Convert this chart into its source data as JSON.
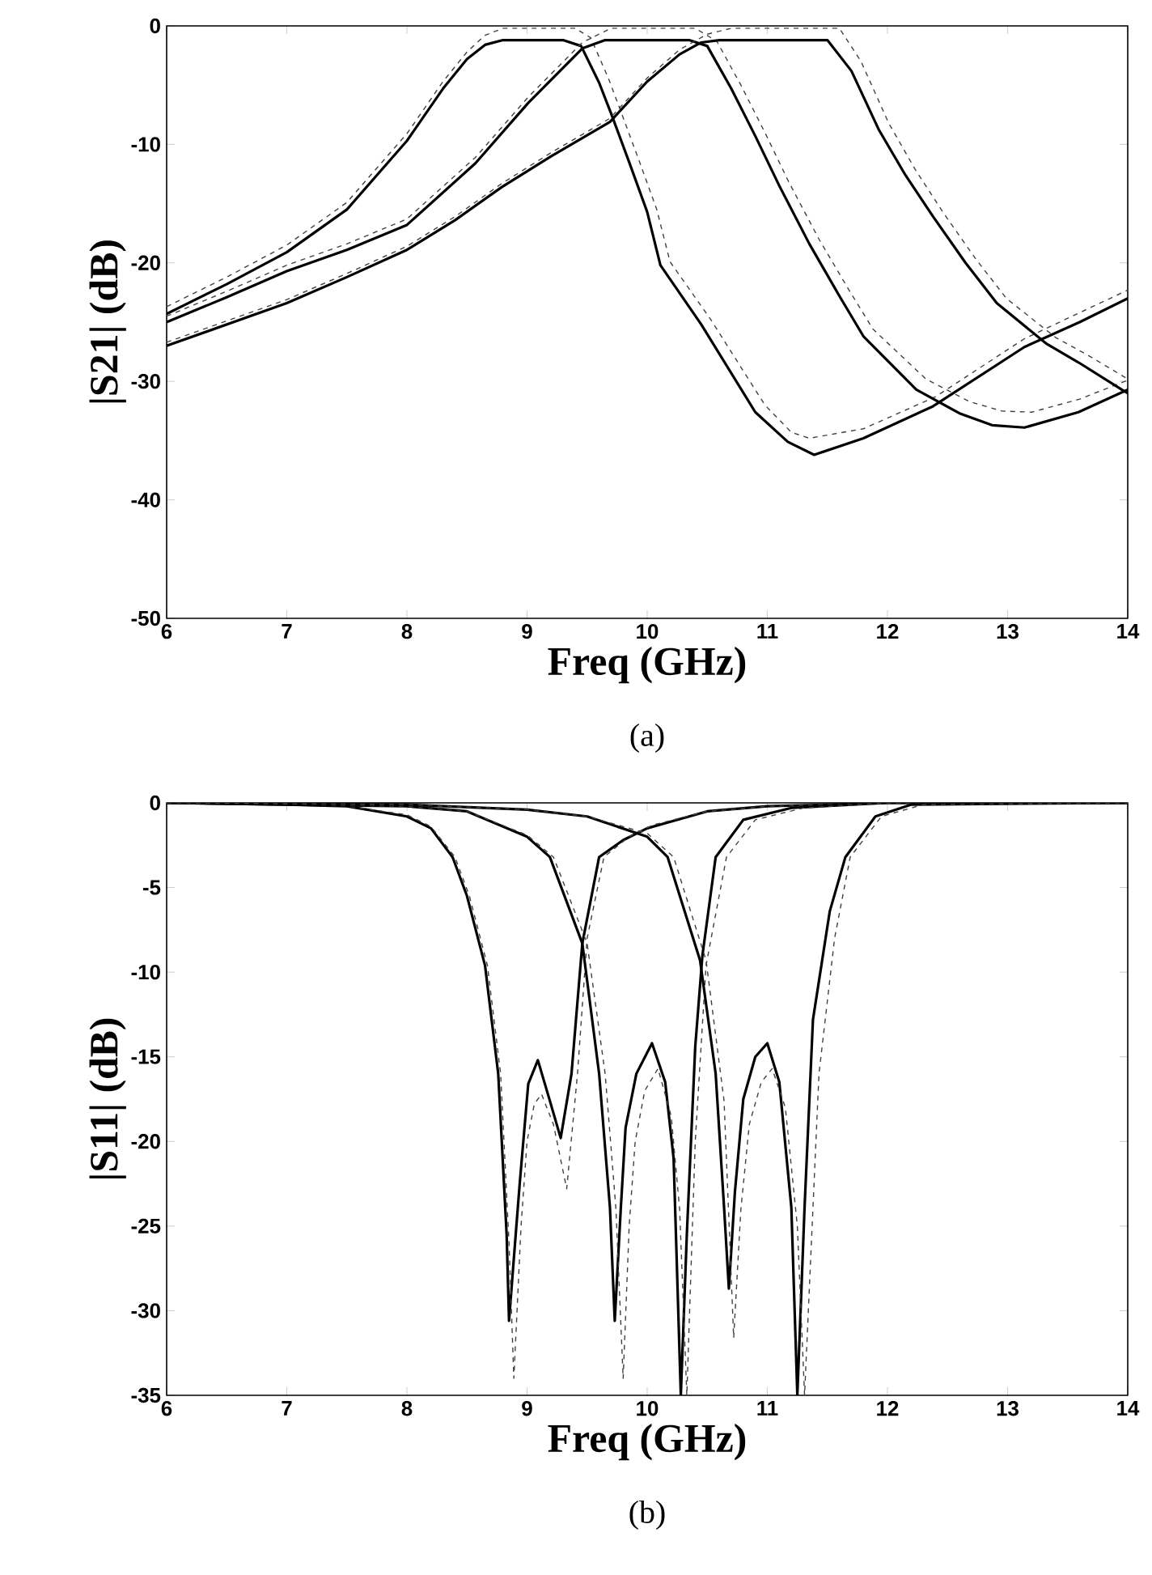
{
  "chart_data": [
    {
      "type": "line",
      "xlabel": "Freq (GHz)",
      "ylabel": "|S21| (dB)",
      "annotations": [
        "(a)"
      ],
      "xlim": [
        6,
        14
      ],
      "ylim": [
        -50,
        0
      ],
      "xticks": [
        6,
        7,
        8,
        9,
        10,
        11,
        12,
        13,
        14
      ],
      "yticks": [
        -50,
        -40,
        -30,
        -20,
        -10,
        0
      ],
      "series": [
        {
          "color": "#000000",
          "line_style": "solid",
          "x": [
            6,
            6.5,
            7,
            7.5,
            8,
            8.3,
            8.5,
            8.65,
            8.8,
            9.3,
            9.45,
            9.6,
            9.7,
            9.85,
            10.0,
            10.11,
            10.45,
            10.9,
            11.17,
            11.39,
            11.8,
            12.38,
            13.14,
            13.6,
            14
          ],
          "values": [
            -24.3,
            -21.8,
            -19.1,
            -15.5,
            -9.7,
            -5.3,
            -2.8,
            -1.6,
            -1.2,
            -1.2,
            -1.7,
            -4.8,
            -7.4,
            -11.5,
            -15.7,
            -20.2,
            -25.2,
            -32.6,
            -35.1,
            -36.2,
            -34.8,
            -32.1,
            -27.1,
            -25.0,
            -23.0
          ]
        },
        {
          "color": "#404040",
          "line_style": "dashed",
          "x": [
            6,
            6.5,
            7,
            7.5,
            8,
            8.3,
            8.5,
            8.65,
            8.8,
            9.4,
            9.53,
            9.68,
            9.78,
            9.93,
            10.08,
            10.19,
            10.53,
            10.98,
            11.2,
            11.35,
            11.8,
            12.4,
            13.14,
            13.6,
            14
          ],
          "values": [
            -23.7,
            -21.2,
            -18.5,
            -14.9,
            -9.1,
            -4.7,
            -2.2,
            -0.8,
            -0.2,
            -0.2,
            -1.0,
            -4.5,
            -7.2,
            -11.3,
            -15.5,
            -19.9,
            -24.8,
            -32.0,
            -34.3,
            -34.8,
            -34.0,
            -31.3,
            -26.4,
            -24.2,
            -22.3
          ]
        },
        {
          "color": "#000000",
          "line_style": "solid",
          "x": [
            6,
            6.5,
            7,
            7.5,
            8,
            8.57,
            9.01,
            9.46,
            9.65,
            10.35,
            10.5,
            10.7,
            10.9,
            11.1,
            11.35,
            11.6,
            11.8,
            12.24,
            12.6,
            12.87,
            13.14,
            13.59,
            14
          ],
          "values": [
            -25.0,
            -22.9,
            -20.7,
            -18.9,
            -16.8,
            -11.6,
            -6.5,
            -1.9,
            -1.2,
            -1.2,
            -1.7,
            -5.3,
            -9.3,
            -13.5,
            -18.4,
            -22.8,
            -26.2,
            -30.7,
            -32.7,
            -33.7,
            -33.9,
            -32.6,
            -30.7
          ]
        },
        {
          "color": "#404040",
          "line_style": "dashed",
          "x": [
            6,
            6.5,
            7,
            7.5,
            8,
            8.57,
            9.01,
            9.46,
            9.7,
            10.4,
            10.58,
            10.78,
            10.98,
            11.18,
            11.43,
            11.68,
            11.88,
            12.32,
            12.68,
            12.95,
            13.2,
            13.6,
            14
          ],
          "values": [
            -24.5,
            -22.4,
            -20.2,
            -18.4,
            -16.3,
            -11.1,
            -6.0,
            -1.4,
            -0.2,
            -0.2,
            -1.3,
            -5.0,
            -9.0,
            -13.2,
            -18.0,
            -22.3,
            -25.6,
            -29.8,
            -31.7,
            -32.5,
            -32.6,
            -31.5,
            -29.9
          ]
        },
        {
          "color": "#000000",
          "line_style": "solid",
          "x": [
            6,
            6.5,
            7,
            7.5,
            8,
            8.4,
            8.79,
            9.2,
            9.69,
            10.0,
            10.27,
            10.45,
            10.6,
            11.5,
            11.7,
            11.93,
            12.15,
            12.38,
            12.65,
            12.91,
            13.32,
            13.59,
            13.95,
            14
          ],
          "values": [
            -27.0,
            -25.2,
            -23.4,
            -21.2,
            -18.9,
            -16.4,
            -13.6,
            -11.0,
            -8.1,
            -4.7,
            -2.4,
            -1.4,
            -1.2,
            -1.2,
            -3.8,
            -8.8,
            -12.6,
            -16.1,
            -20.0,
            -23.4,
            -26.8,
            -28.4,
            -30.7,
            -31.0
          ]
        },
        {
          "color": "#404040",
          "line_style": "dashed",
          "x": [
            6,
            6.5,
            7,
            7.5,
            8,
            8.4,
            8.79,
            9.2,
            9.69,
            10.0,
            10.27,
            10.5,
            10.7,
            11.6,
            11.78,
            12.01,
            12.23,
            12.46,
            12.73,
            12.99,
            13.4,
            13.67,
            14
          ],
          "values": [
            -26.7,
            -24.9,
            -23.1,
            -20.9,
            -18.6,
            -16.1,
            -13.3,
            -10.7,
            -7.8,
            -4.4,
            -2.0,
            -0.7,
            -0.2,
            -0.2,
            -3.0,
            -8.2,
            -12.1,
            -15.7,
            -19.6,
            -23.0,
            -26.3,
            -27.8,
            -29.8
          ]
        }
      ]
    },
    {
      "type": "line",
      "xlabel": "Freq (GHz)",
      "ylabel": "|S11| (dB)",
      "annotations": [
        "(b)"
      ],
      "xlim": [
        6,
        14
      ],
      "ylim": [
        -35,
        0
      ],
      "xticks": [
        6,
        7,
        8,
        9,
        10,
        11,
        12,
        13,
        14
      ],
      "yticks": [
        -35,
        -30,
        -25,
        -20,
        -15,
        -10,
        -5,
        0
      ],
      "series": [
        {
          "color": "#000000",
          "line_style": "solid",
          "x": [
            6,
            7,
            7.5,
            8,
            8.2,
            8.38,
            8.5,
            8.65,
            8.76,
            8.83,
            8.85,
            8.9,
            8.94,
            9.01,
            9.09,
            9.19,
            9.28,
            9.37,
            9.46,
            9.6,
            9.8,
            10,
            10.5,
            11,
            12,
            14
          ],
          "values": [
            0,
            -0.1,
            -0.2,
            -0.8,
            -1.5,
            -3.2,
            -5.5,
            -9.6,
            -16.0,
            -25.5,
            -30.6,
            -26.0,
            -22.4,
            -16.6,
            -15.2,
            -17.6,
            -19.8,
            -16.0,
            -8.3,
            -3.2,
            -2.2,
            -1.5,
            -0.5,
            -0.2,
            0,
            0
          ]
        },
        {
          "color": "#404040",
          "line_style": "dashed",
          "x": [
            6,
            7,
            7.5,
            8,
            8.2,
            8.4,
            8.52,
            8.67,
            8.78,
            8.85,
            8.89,
            8.95,
            9.0,
            9.06,
            9.12,
            9.22,
            9.33,
            9.42,
            9.5,
            9.64,
            9.85,
            10.05,
            10.5,
            11,
            12,
            14
          ],
          "values": [
            0,
            -0.1,
            -0.2,
            -0.7,
            -1.4,
            -3.2,
            -5.5,
            -9.6,
            -16.0,
            -26.0,
            -34.0,
            -25.0,
            -20.0,
            -17.8,
            -17.2,
            -19.0,
            -22.8,
            -16.0,
            -8.0,
            -3.2,
            -2.0,
            -1.3,
            -0.5,
            -0.2,
            0,
            0
          ]
        },
        {
          "color": "#000000",
          "line_style": "solid",
          "x": [
            6,
            7,
            8,
            8.5,
            9,
            9.19,
            9.46,
            9.6,
            9.69,
            9.73,
            9.78,
            9.82,
            9.91,
            10.04,
            10.15,
            10.22,
            10.28,
            10.33,
            10.4,
            10.46,
            10.57,
            10.8,
            11.2,
            12,
            14
          ],
          "values": [
            0,
            -0.1,
            -0.2,
            -0.5,
            -2.0,
            -3.2,
            -8.3,
            -16.0,
            -23.9,
            -30.6,
            -24.0,
            -19.2,
            -16.0,
            -14.2,
            -16.5,
            -21.0,
            -35.0,
            -25.5,
            -14.4,
            -9.0,
            -3.2,
            -1.0,
            -0.3,
            0,
            0
          ]
        },
        {
          "color": "#404040",
          "line_style": "dashed",
          "x": [
            6,
            7,
            8,
            8.5,
            9,
            9.22,
            9.5,
            9.65,
            9.74,
            9.8,
            9.85,
            9.9,
            9.98,
            10.09,
            10.2,
            10.27,
            10.33,
            10.4,
            10.49,
            10.66,
            10.9,
            11.3,
            12,
            14
          ],
          "values": [
            0,
            -0.1,
            -0.2,
            -0.5,
            -1.9,
            -3.2,
            -8.3,
            -16.0,
            -24.0,
            -34.0,
            -25.0,
            -20.0,
            -17.0,
            -15.7,
            -18.5,
            -24.0,
            -35.0,
            -20.0,
            -9.6,
            -3.2,
            -1.0,
            -0.3,
            0,
            0
          ]
        },
        {
          "color": "#000000",
          "line_style": "solid",
          "x": [
            6,
            8,
            9,
            9.5,
            10,
            10.17,
            10.44,
            10.57,
            10.64,
            10.68,
            10.73,
            10.8,
            10.9,
            11.0,
            11.1,
            11.2,
            11.25,
            11.31,
            11.38,
            11.52,
            11.65,
            11.9,
            12.2,
            14
          ],
          "values": [
            0,
            -0.1,
            -0.4,
            -0.8,
            -2.0,
            -3.2,
            -9.3,
            -16.0,
            -23.9,
            -28.7,
            -23.0,
            -17.5,
            -15.0,
            -14.2,
            -16.5,
            -23.9,
            -35.0,
            -23.9,
            -12.8,
            -6.4,
            -3.2,
            -0.8,
            -0.1,
            0
          ]
        },
        {
          "color": "#404040",
          "line_style": "dashed",
          "x": [
            6,
            8,
            9,
            9.5,
            10,
            10.22,
            10.49,
            10.64,
            10.72,
            10.78,
            10.85,
            10.95,
            11.04,
            11.15,
            11.25,
            11.31,
            11.43,
            11.56,
            11.69,
            11.95,
            12.3,
            14
          ],
          "values": [
            0,
            -0.1,
            -0.4,
            -0.8,
            -1.8,
            -3.2,
            -9.3,
            -17.6,
            -31.6,
            -24.0,
            -19.0,
            -16.5,
            -15.7,
            -18.0,
            -25.0,
            -35.0,
            -16.0,
            -8.0,
            -3.2,
            -0.8,
            -0.1,
            0
          ]
        }
      ]
    }
  ]
}
